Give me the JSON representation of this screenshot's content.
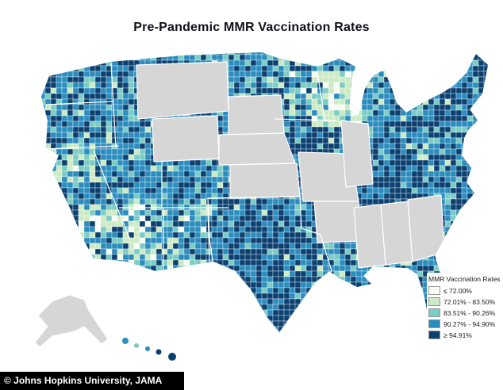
{
  "title": "Pre-Pandemic MMR Vaccination Rates",
  "attribution": "© Johns Hopkins University, JAMA",
  "legend": {
    "title": "MMR Vaccination Rates",
    "items": [
      {
        "label": "≤ 72.00%",
        "color": "#f7fcf5"
      },
      {
        "label": "72.01% - 83.50%",
        "color": "#ccebc5"
      },
      {
        "label": "83.51% - 90.26%",
        "color": "#7bccc4"
      },
      {
        "label": "90.27% - 94.90%",
        "color": "#2b8cbe"
      },
      {
        "label": "≥ 94.91%",
        "color": "#0b4070"
      }
    ]
  },
  "map": {
    "no_data_color": "#d6d6d6",
    "base_color": "#2b8cbe"
  }
}
